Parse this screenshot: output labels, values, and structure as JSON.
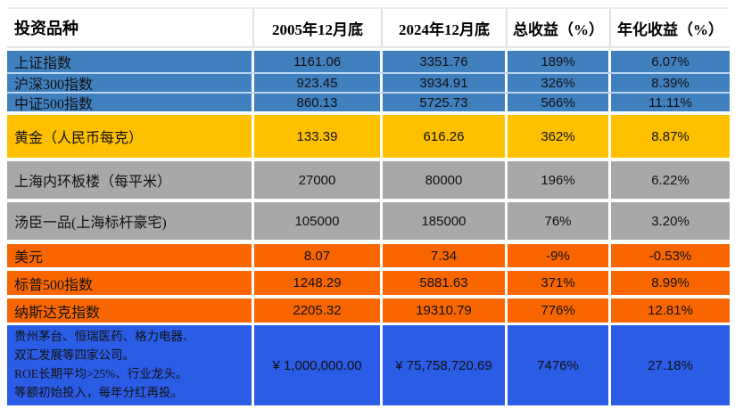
{
  "colors": {
    "steel_blue": "#4180BF",
    "blue_separator": "#B9D4EE",
    "gold": "#FFC000",
    "gray": "#A8A8A8",
    "orange": "#F96600",
    "royal_blue": "#2B5CE6",
    "header_bg": "#FFFFFF",
    "text": "#111111"
  },
  "chart_data": {
    "type": "table",
    "columns": [
      "投资品种",
      "2005年12月底",
      "2024年12月底",
      "总收益（%）",
      "年化收益（%）"
    ],
    "rows": [
      {
        "label": "上证指数",
        "values": [
          "1161.06",
          "3351.76",
          "189%",
          "6.07%"
        ],
        "row_color": "#4180BF"
      },
      {
        "label": "沪深300指数",
        "values": [
          "923.45",
          "3934.91",
          "326%",
          "8.39%"
        ],
        "row_color": "#4180BF"
      },
      {
        "label": "中证500指数",
        "values": [
          "860.13",
          "5725.73",
          "566%",
          "11.11%"
        ],
        "row_color": "#4180BF"
      },
      {
        "label": "黄金（人民币每克）",
        "values": [
          "133.39",
          "616.26",
          "362%",
          "8.87%"
        ],
        "row_color": "#FFC000"
      },
      {
        "label": "上海内环板楼（每平米）",
        "values": [
          "27000",
          "80000",
          "196%",
          "6.22%"
        ],
        "row_color": "#A8A8A8"
      },
      {
        "label": "汤臣一品(上海标杆豪宅)",
        "values": [
          "105000",
          "185000",
          "76%",
          "3.20%"
        ],
        "row_color": "#A8A8A8"
      },
      {
        "label": "美元",
        "values": [
          "8.07",
          "7.34",
          "-9%",
          "-0.53%"
        ],
        "row_color": "#F96600"
      },
      {
        "label": "标普500指数",
        "values": [
          "1248.29",
          "5881.63",
          "371%",
          "8.99%"
        ],
        "row_color": "#F96600"
      },
      {
        "label": "纳斯达克指数",
        "values": [
          "2205.32",
          "19310.79",
          "776%",
          "12.81%"
        ],
        "row_color": "#F96600"
      },
      {
        "label": "贵州茅台、恒瑞医药、格力电器、\n双汇发展等四家公司。\nROE长期平均>25%、行业龙头。\n等额初始投入，每年分红再投。",
        "values": [
          "¥ 1,000,000.00",
          "¥ 75,758,720.69",
          "7476%",
          "27.18%"
        ],
        "row_color": "#2B5CE6"
      }
    ]
  }
}
